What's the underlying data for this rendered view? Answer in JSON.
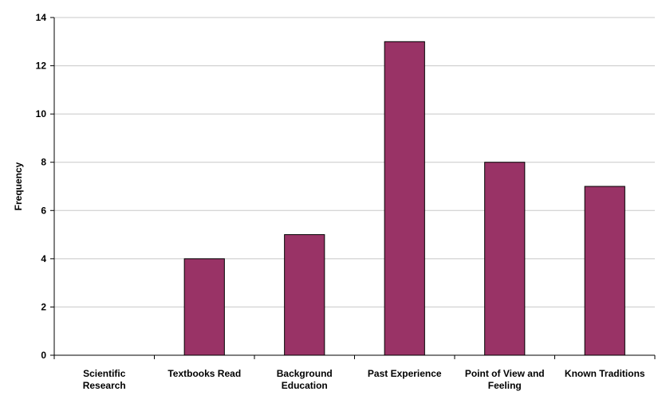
{
  "chart_data": {
    "type": "bar",
    "ylabel": "Frequency",
    "xlabel": "",
    "ylim": [
      0,
      14
    ],
    "yticks": [
      0,
      2,
      4,
      6,
      8,
      10,
      12,
      14
    ],
    "grid": true,
    "bar_color": "#993366",
    "categories": [
      [
        "Scientific",
        "Research"
      ],
      [
        "Textbooks Read"
      ],
      [
        "Background",
        "Education"
      ],
      [
        "Past Experience"
      ],
      [
        "Point of View and",
        "Feeling"
      ],
      [
        "Known Traditions"
      ]
    ],
    "values": [
      0,
      4,
      5,
      13,
      8,
      7
    ]
  }
}
